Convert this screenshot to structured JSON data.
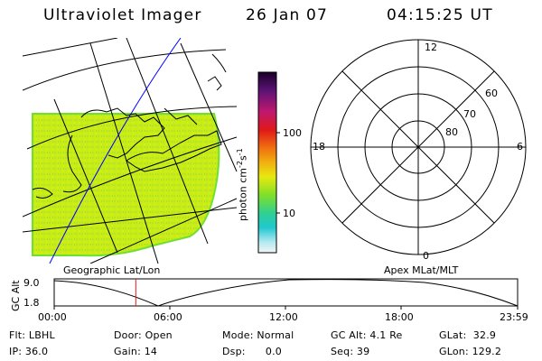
{
  "header": {
    "title": "Ultraviolet Imager",
    "date": "26 Jan 07",
    "time": "04:15:25 UT"
  },
  "colorbar": {
    "unit_label": "photon cm",
    "unit_sup1": "-2",
    "unit_s": "s",
    "unit_sup2": "-1",
    "tick_100": "100",
    "tick_10": "10",
    "colors": [
      "#1a0026",
      "#3b0a55",
      "#7a1e8e",
      "#c01870",
      "#e01818",
      "#f07010",
      "#f0a810",
      "#f0e010",
      "#c8f010",
      "#70e030",
      "#30d090",
      "#20c8d0",
      "#a8e8f0",
      "#f0f0f0"
    ]
  },
  "polar": {
    "mlt_12": "12",
    "mlt_18": "18",
    "mlt_6": "6",
    "mlt_0": "0",
    "lat_60": "60",
    "lat_70": "70",
    "lat_80": "80"
  },
  "captions": {
    "left": "Geographic Lat/Lon",
    "right": "Apex MLat/MLT"
  },
  "altitude_plot": {
    "ylabel": "GC Alt",
    "ytick_high": "9.0",
    "ytick_low": "1.8",
    "x_ticks": [
      "00:00",
      "06:00",
      "12:00",
      "18:00",
      "23:59"
    ],
    "current_time_fraction": 0.176
  },
  "info": {
    "flt": "Flt: LBHL",
    "ip": "IP: 36.0",
    "door": "Door: Open",
    "gain": "Gain: 14",
    "mode": "Mode: Normal",
    "dsp": "Dsp:      0.0",
    "gcalt": "GC Alt: 4.1 Re",
    "seq": "Seq: 39",
    "glat": "GLat:  32.9",
    "glon": "GLon: 129.2"
  },
  "colors": {
    "image_green": "#c8f010",
    "image_edge": "#70e030",
    "grid": "#000000",
    "orbit_line": "#0000ff",
    "time_marker": "#e01818"
  }
}
